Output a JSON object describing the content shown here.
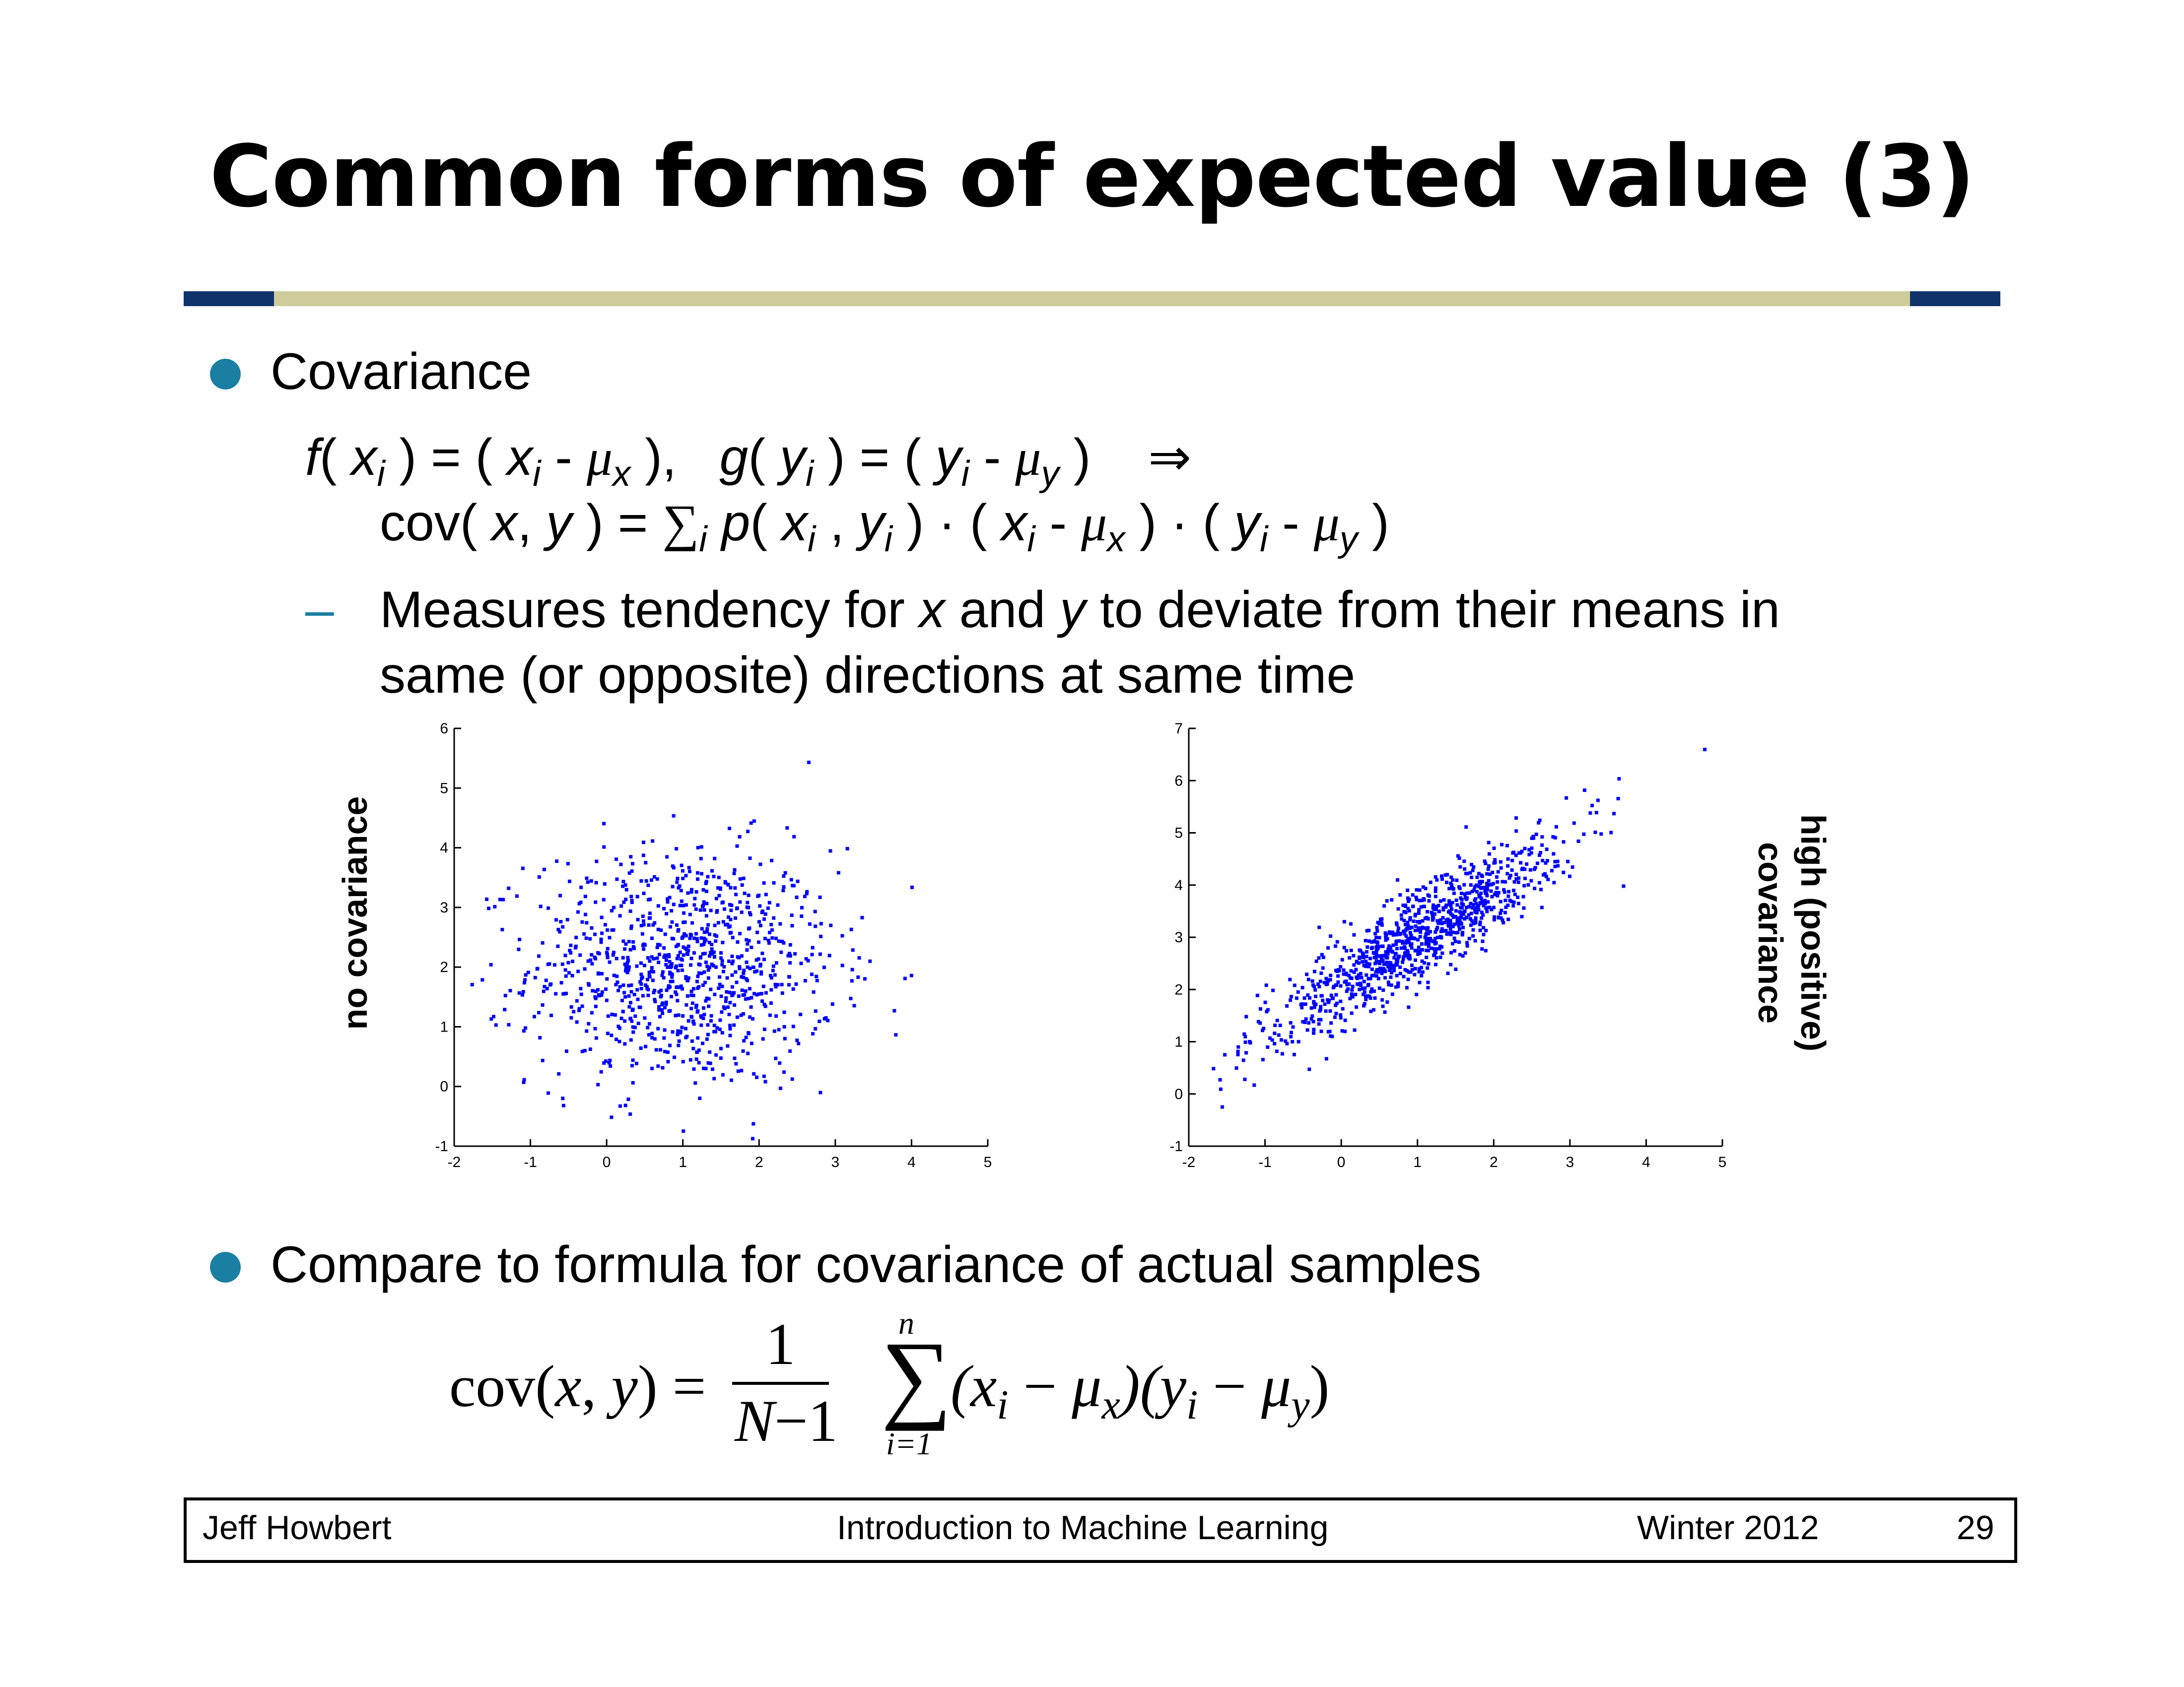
{
  "title": "Common forms of expected value (3)",
  "bullets": [
    {
      "label": "Covariance"
    },
    {
      "label": "Compare to formula for covariance of actual samples"
    }
  ],
  "formula1": {
    "f": "f",
    "xi": "x",
    "i": "i",
    "mu": "μ",
    "x": "x",
    "g": "g",
    "yi": "y",
    "y": "y",
    "implies": "⇒",
    "cov": "cov",
    "sum": "∑",
    "p": "p",
    "dot": "·"
  },
  "sub_bullet": {
    "dash": "–",
    "line1_a": "Measures tendency for ",
    "line1_x": "x",
    "line1_b": " and ",
    "line1_y": "y",
    "line1_c": " to deviate from their means in",
    "line2": "same (or opposite) directions at same time"
  },
  "formula2": {
    "lhs": "cov(",
    "x": "x",
    "comma": ", ",
    "y": "y",
    "rp": ")",
    "eq": "=",
    "numerator": "1",
    "denom_N": "N",
    "denom_rest": "−1",
    "sum": "∑",
    "upper": "n",
    "lower": "i=1",
    "term": "(x",
    "i": "i",
    "minus": "−",
    "mu": "μ",
    "sx": "x",
    "mid": ")(y",
    "sy": "y",
    "end": ")"
  },
  "labels": {
    "left_plot": "no covariance",
    "right_plot_line1": "high (positive)",
    "right_plot_line2": "covariance"
  },
  "footer": {
    "author": "Jeff Howbert",
    "course": "Introduction to Machine Learning",
    "term": "Winter 2012",
    "page": "29"
  },
  "chart_data": [
    {
      "type": "scatter",
      "name": "no-covariance",
      "x_ticks": [
        "-2",
        "-1",
        "0",
        "1",
        "2",
        "3",
        "4",
        "5"
      ],
      "y_ticks": [
        "-1",
        "0",
        "1",
        "2",
        "3",
        "4",
        "5",
        "6"
      ],
      "xlim": [
        -2,
        5
      ],
      "ylim": [
        -1,
        6
      ],
      "point_count": 1000,
      "mean": [
        1.0,
        2.0
      ],
      "sd": [
        1.0,
        1.0
      ],
      "correlation": 0.0,
      "color": "#0000ff"
    },
    {
      "type": "scatter",
      "name": "high-positive-covariance",
      "x_ticks": [
        "-2",
        "-1",
        "0",
        "1",
        "2",
        "3",
        "4",
        "5"
      ],
      "y_ticks": [
        "-1",
        "0",
        "1",
        "2",
        "3",
        "4",
        "5",
        "6",
        "7"
      ],
      "xlim": [
        -2,
        5
      ],
      "ylim": [
        -1,
        7
      ],
      "point_count": 1000,
      "mean": [
        1.0,
        3.0
      ],
      "sd": [
        1.0,
        1.0
      ],
      "correlation": 0.9,
      "color": "#0000ff"
    }
  ]
}
